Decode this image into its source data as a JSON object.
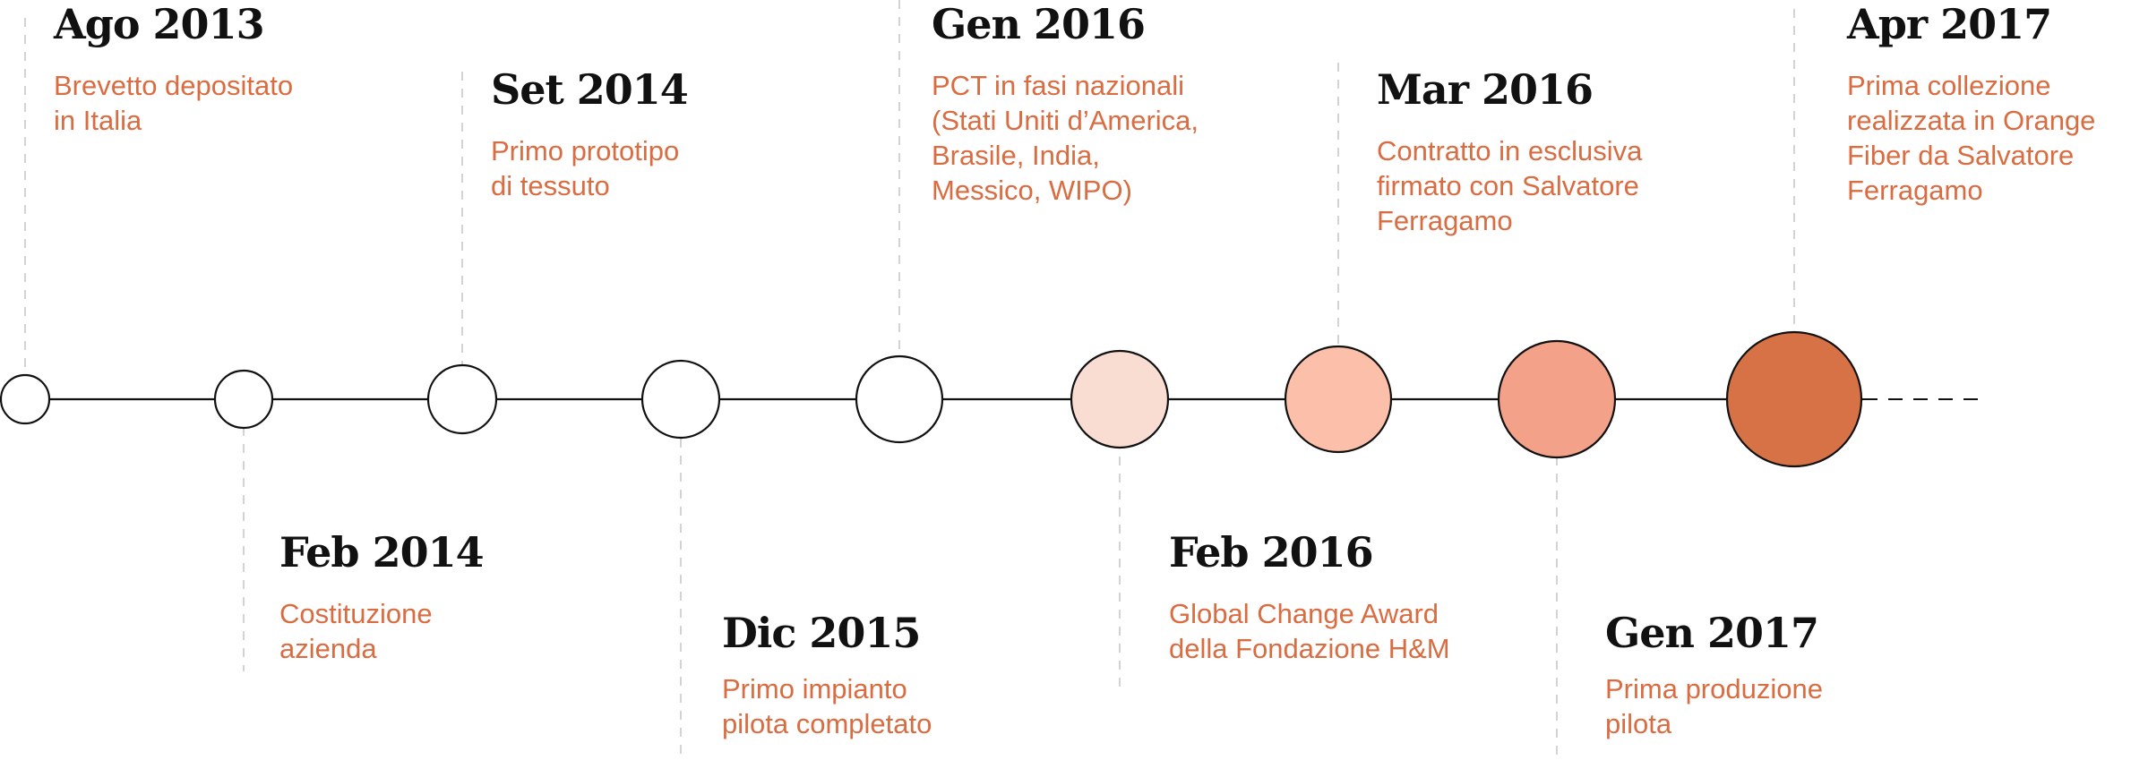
{
  "colors": {
    "axis": "#111111",
    "guide": "#c8c8c8",
    "date_text": "#111111",
    "description_text": "#d96c41"
  },
  "events": [
    {
      "date": "Ago 2013",
      "description_lines": [
        "Brevetto depositato",
        "in Italia"
      ],
      "node_fill": "#ffffff"
    },
    {
      "date": "Feb 2014",
      "description_lines": [
        "Costituzione",
        "azienda"
      ],
      "node_fill": "#ffffff"
    },
    {
      "date": "Set 2014",
      "description_lines": [
        "Primo prototipo",
        "di tessuto"
      ],
      "node_fill": "#ffffff"
    },
    {
      "date": "Dic 2015",
      "description_lines": [
        "Primo impianto",
        "pilota completato"
      ],
      "node_fill": "#ffffff"
    },
    {
      "date": "Gen 2016",
      "description_lines": [
        "PCT in fasi nazionali",
        "(Stati Uniti d’America,",
        "Brasile, India,",
        "Messico, WIPO)"
      ],
      "node_fill": "#ffffff"
    },
    {
      "date": "Feb 2016",
      "description_lines": [
        "Global Change Award",
        "della Fondazione H&M"
      ],
      "node_fill": "#f9ddd3"
    },
    {
      "date": "Mar 2016",
      "description_lines": [
        "Contratto in esclusiva",
        "firmato con Salvatore",
        "Ferragamo"
      ],
      "node_fill": "#fcc0aa"
    },
    {
      "date": "Gen 2017",
      "description_lines": [
        "Prima produzione",
        "pilota"
      ],
      "node_fill": "#f3a188"
    },
    {
      "date": "Apr 2017",
      "description_lines": [
        "Prima collezione",
        "realizzata in Orange",
        "Fiber da Salvatore",
        "Ferragamo"
      ],
      "node_fill": "#d67245"
    }
  ]
}
